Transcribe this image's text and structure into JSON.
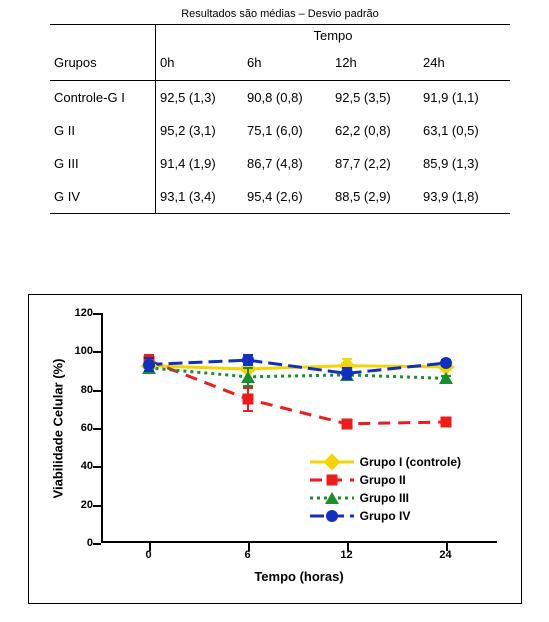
{
  "table": {
    "caption": "Resultados são médias – Desvio padrão",
    "corner_label": "Grupos",
    "time_header": "Tempo",
    "time_cols": [
      "0h",
      "6h",
      "12h",
      "24h"
    ],
    "rows": [
      {
        "label": "Controle-G I",
        "vals": [
          "92,5 (1,3)",
          "90,8 (0,8)",
          "92,5 (3,5)",
          "91,9 (1,1)"
        ]
      },
      {
        "label": "G II",
        "vals": [
          "95,2 (3,1)",
          "75,1 (6,0)",
          "62,2 (0,8)",
          "63,1 (0,5)"
        ]
      },
      {
        "label": "G III",
        "vals": [
          "91,4 (1,9)",
          "86,7 (4,8)",
          "87,7 (2,2)",
          "85,9 (1,3)"
        ]
      },
      {
        "label": "G IV",
        "vals": [
          "93,1 (3,4)",
          "95,4 (2,6)",
          "88,5 (2,9)",
          "93,9 (1,8)"
        ]
      }
    ]
  },
  "chart": {
    "type": "line",
    "xlabel": "Tempo (horas)",
    "ylabel": "Viabilidade Celular (%)",
    "x_ticks": [
      0,
      6,
      12,
      24
    ],
    "x_positions_pct": [
      12,
      37,
      62,
      87
    ],
    "ylim": [
      0,
      120
    ],
    "ytick_step": 20,
    "y_ticks": [
      0,
      20,
      40,
      60,
      80,
      100,
      120
    ],
    "axis_color": "#000000",
    "background_color": "#ffffff",
    "line_width": 3,
    "marker_size": 12,
    "errorbar_cap_width": 10,
    "label_fontsize": 13,
    "tick_fontsize": 11,
    "series": [
      {
        "id": "g1",
        "legend": "Grupo I (controle)",
        "color": "#f5d400",
        "dash": "0",
        "marker": "diamond",
        "y": [
          92.5,
          90.8,
          92.5,
          91.9
        ],
        "sd": [
          1.3,
          0.8,
          3.5,
          1.1
        ]
      },
      {
        "id": "g2",
        "legend": "Grupo II",
        "color": "#ef1a1a",
        "dash": "12 8",
        "marker": "square",
        "y": [
          95.2,
          75.1,
          62.2,
          63.1
        ],
        "sd": [
          3.1,
          6.0,
          0.8,
          0.5
        ]
      },
      {
        "id": "g3",
        "legend": "Grupo III",
        "color": "#1a8f2e",
        "dash": "3 4",
        "marker": "triangle",
        "y": [
          91.4,
          86.7,
          87.7,
          85.9
        ],
        "sd": [
          1.9,
          4.8,
          2.2,
          1.3
        ]
      },
      {
        "id": "g4",
        "legend": "Grupo IV",
        "color": "#1030c0",
        "dash": "14 6",
        "marker": "circle",
        "y": [
          93.1,
          95.4,
          88.5,
          93.9
        ],
        "sd": [
          3.4,
          2.6,
          2.9,
          1.8
        ]
      }
    ]
  }
}
